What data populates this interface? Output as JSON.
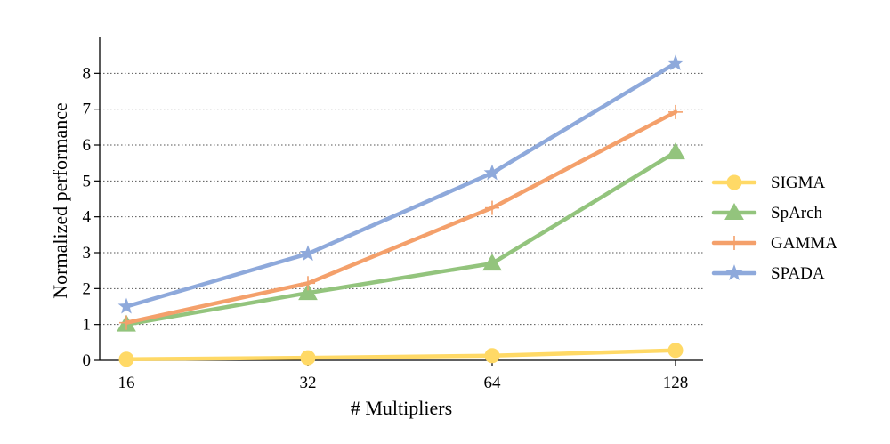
{
  "chart_data": {
    "type": "line",
    "xlabel": "# Multipliers",
    "ylabel": "Normalized performance",
    "categories": [
      "16",
      "32",
      "64",
      "128"
    ],
    "ylim": [
      0,
      9
    ],
    "yticks": [
      "0",
      "1",
      "2",
      "3",
      "4",
      "5",
      "6",
      "7",
      "8"
    ],
    "grid": "horizontal dotted",
    "legend_position": "right",
    "series": [
      {
        "name": "SIGMA",
        "values": [
          0.03,
          0.07,
          0.13,
          0.28
        ],
        "color": "#ffd966",
        "marker": "circle"
      },
      {
        "name": "SpArch",
        "values": [
          1.0,
          1.88,
          2.7,
          5.8
        ],
        "color": "#93c47d",
        "marker": "triangle"
      },
      {
        "name": "GAMMA",
        "values": [
          1.05,
          2.15,
          4.25,
          6.92
        ],
        "color": "#f4a06b",
        "marker": "plus"
      },
      {
        "name": "SPADA",
        "values": [
          1.5,
          2.97,
          5.22,
          8.28
        ],
        "color": "#8ea9db",
        "marker": "star"
      }
    ]
  }
}
